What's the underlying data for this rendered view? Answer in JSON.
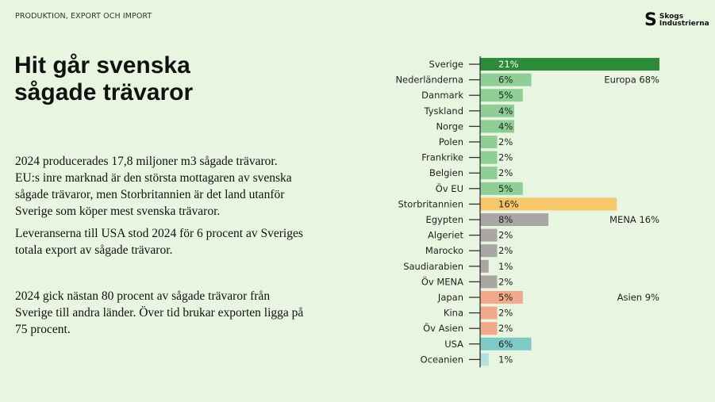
{
  "header": {
    "kicker": "PRODUKTION, EXPORT OCH IMPORT",
    "logo_text": [
      "Skogs",
      "Industrierna"
    ]
  },
  "title": "Hit går svenska sågade trävaror",
  "paragraphs": [
    "2024 producerades 17,8 miljoner m3 sågade trävaror. EU:s inre marknad är den största mottagaren av svenska sågade trävaror, men Storbritannien är det land utanför Sverige som köper mest svenska trävaror.",
    "Leveranserna till USA stod 2024 för 6 procent av Sveriges totala export av sågade trävaror.",
    "2024 gick nästan 80 procent av sågade trävaror från Sverige till andra länder. Över tid brukar exporten ligga på 75 procent."
  ],
  "chart_data": {
    "type": "bar",
    "orientation": "horizontal",
    "categories": [
      "Sverige",
      "Nederländerna",
      "Danmark",
      "Tyskland",
      "Norge",
      "Polen",
      "Frankrike",
      "Belgien",
      "Öv EU",
      "Storbritannien",
      "Egypten",
      "Algeriet",
      "Marocko",
      "Saudiarabien",
      "Öv MENA",
      "Japan",
      "Kina",
      "Öv Asien",
      "USA",
      "Oceanien"
    ],
    "values": [
      21,
      6,
      5,
      4,
      4,
      2,
      2,
      2,
      5,
      16,
      8,
      2,
      2,
      1,
      2,
      5,
      2,
      2,
      6,
      1
    ],
    "data_labels": [
      "21%",
      "6%",
      "5%",
      "4%",
      "4%",
      "2%",
      "2%",
      "2%",
      "5%",
      "16%",
      "8%",
      "2%",
      "2%",
      "1%",
      "2%",
      "5%",
      "2%",
      "2%",
      "6%",
      "1%"
    ],
    "colors": [
      "#2e8b3a",
      "#8fcf96",
      "#8fcf96",
      "#8fcf96",
      "#8fcf96",
      "#8fcf96",
      "#8fcf96",
      "#8fcf96",
      "#8fcf96",
      "#f6c86a",
      "#aaa6a3",
      "#aaa6a3",
      "#aaa6a3",
      "#aaa6a3",
      "#aaa6a3",
      "#f0a98a",
      "#f0a98a",
      "#f0a98a",
      "#7fcac6",
      "#b4e0e0"
    ],
    "group_labels": [
      {
        "row": "Nederländerna",
        "text": "Europa 68%"
      },
      {
        "row": "Egypten",
        "text": "MENA 16%"
      },
      {
        "row": "Japan",
        "text": "Asien 9%"
      }
    ],
    "unit": "%",
    "xlim": [
      0,
      21
    ],
    "grid": false
  }
}
